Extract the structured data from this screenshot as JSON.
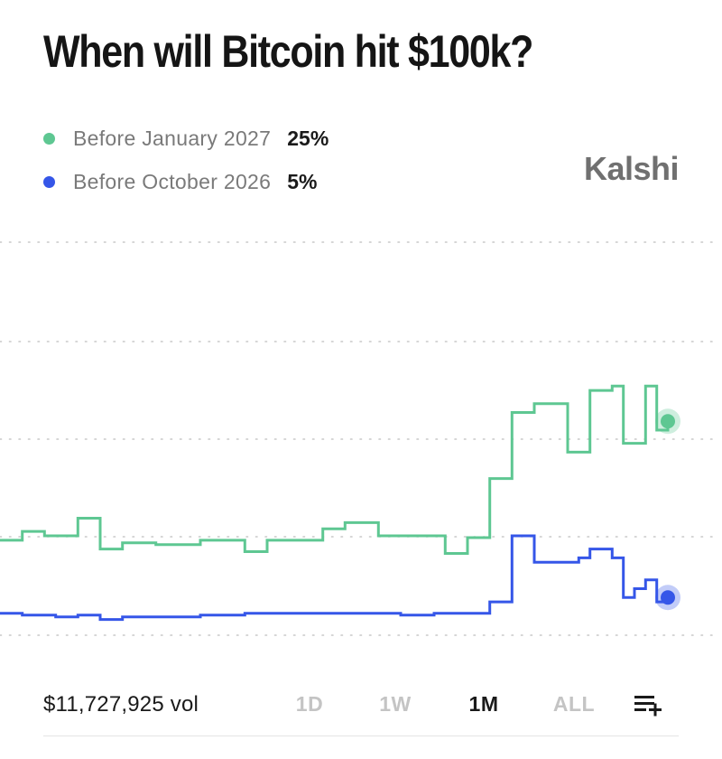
{
  "header": {
    "title": "When will Bitcoin hit $100k?"
  },
  "brand": {
    "name": "Kalshi"
  },
  "legend": [
    {
      "label": "Before January 2027",
      "value": "25%",
      "color": "#5ec792"
    },
    {
      "label": "Before October 2026",
      "value": "5%",
      "color": "#3556e8"
    }
  ],
  "footer": {
    "volume": "$11,727,925 vol",
    "ranges": [
      "1D",
      "1W",
      "1M",
      "ALL"
    ],
    "active_range": "1M",
    "menu_icon": "list-add-icon"
  },
  "chart_data": {
    "type": "line",
    "step": true,
    "grid": true,
    "x_axis_labels": false,
    "y_axis_labels": false,
    "x": [
      0,
      1,
      2,
      3,
      4,
      5,
      6,
      7,
      8,
      9,
      10,
      11,
      12,
      13,
      14,
      15,
      16,
      17,
      18,
      19,
      20,
      21,
      22,
      23,
      24,
      25,
      26,
      27,
      28,
      29,
      30,
      31,
      32,
      33,
      34,
      35,
      36,
      37,
      38,
      39,
      40,
      41,
      42,
      43,
      44,
      45,
      46,
      47,
      48,
      49,
      50,
      51,
      52,
      53,
      54,
      55,
      56,
      57,
      58,
      59,
      60
    ],
    "series": [
      {
        "name": "Before January 2027",
        "color": "#5ec792",
        "values": [
          11.5,
          11.5,
          12.5,
          12.5,
          12.0,
          12.0,
          12.0,
          14.0,
          14.0,
          10.5,
          10.5,
          11.2,
          11.2,
          11.2,
          11.0,
          11.0,
          11.0,
          11.0,
          11.5,
          11.5,
          11.5,
          11.5,
          10.2,
          10.2,
          11.5,
          11.5,
          11.5,
          11.5,
          11.5,
          12.8,
          12.8,
          13.5,
          13.5,
          13.5,
          12.0,
          12.0,
          12.0,
          12.0,
          12.0,
          12.0,
          10.0,
          10.0,
          11.8,
          11.8,
          18.5,
          18.5,
          26.0,
          26.0,
          27.0,
          27.0,
          27.0,
          21.5,
          21.5,
          28.5,
          28.5,
          29.0,
          22.5,
          22.5,
          29.0,
          24.0,
          25.0
        ],
        "current": "25%"
      },
      {
        "name": "Before October 2026",
        "color": "#3556e8",
        "values": [
          3.2,
          3.2,
          3.0,
          3.0,
          3.0,
          2.8,
          2.8,
          3.0,
          3.0,
          2.5,
          2.5,
          2.8,
          2.8,
          2.8,
          2.8,
          2.8,
          2.8,
          2.8,
          3.0,
          3.0,
          3.0,
          3.0,
          3.2,
          3.2,
          3.2,
          3.2,
          3.2,
          3.2,
          3.2,
          3.2,
          3.2,
          3.2,
          3.2,
          3.2,
          3.2,
          3.2,
          3.0,
          3.0,
          3.0,
          3.2,
          3.2,
          3.2,
          3.2,
          3.2,
          4.5,
          4.5,
          12.0,
          12.0,
          9.0,
          9.0,
          9.0,
          9.0,
          9.5,
          10.5,
          10.5,
          9.5,
          5.0,
          6.0,
          7.0,
          4.5,
          5.0
        ],
        "current": "5%"
      }
    ]
  }
}
